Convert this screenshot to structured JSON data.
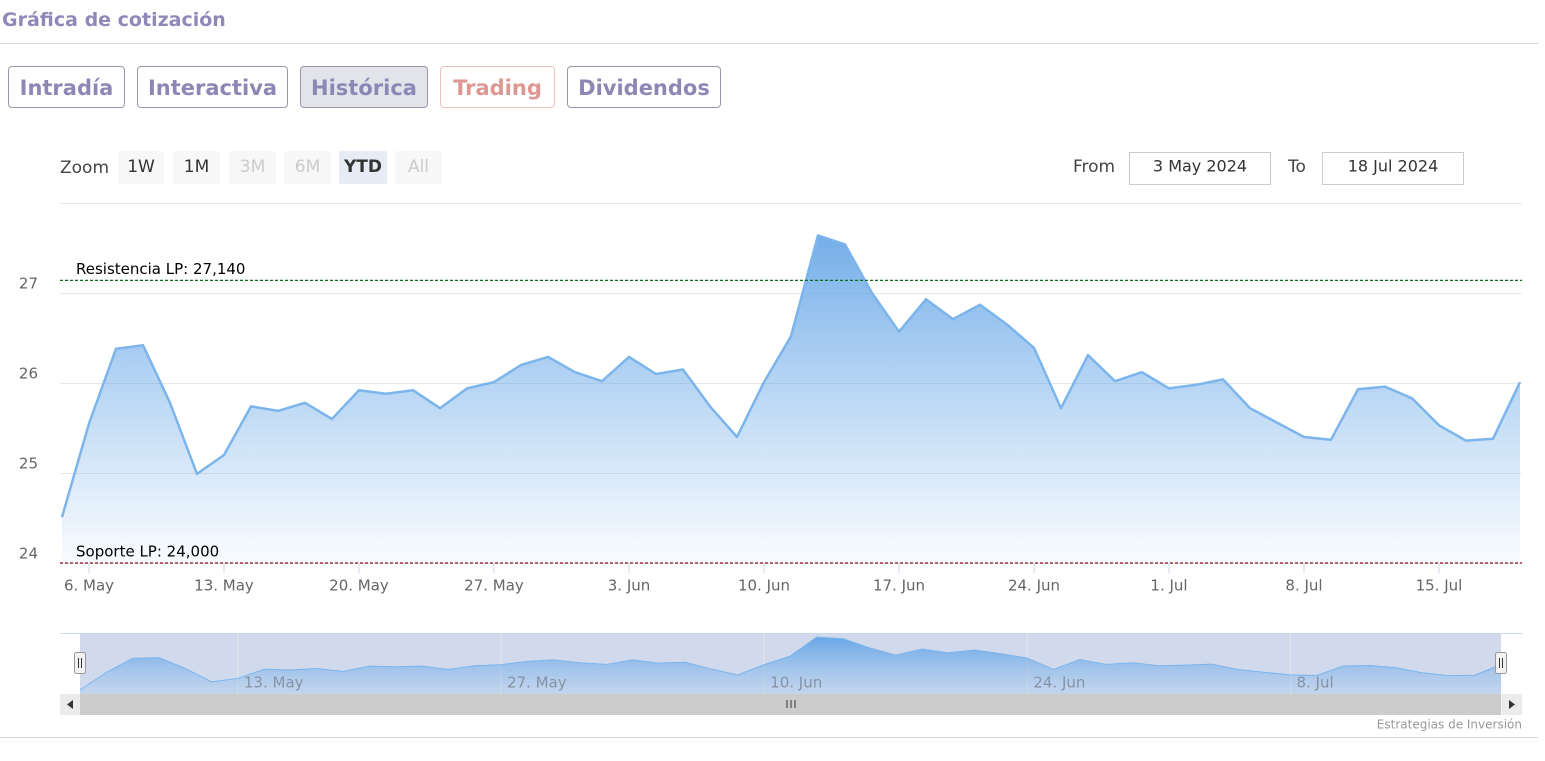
{
  "header": {
    "title": "Gráfica de cotización"
  },
  "tabs": [
    "Intradía",
    "Interactiva",
    "Histórica",
    "Trading",
    "Dividendos"
  ],
  "active_tab": 2,
  "zoom": {
    "label": "Zoom",
    "buttons": [
      {
        "label": "1W",
        "state": "enabled"
      },
      {
        "label": "1M",
        "state": "enabled"
      },
      {
        "label": "3M",
        "state": "disabled"
      },
      {
        "label": "6M",
        "state": "disabled"
      },
      {
        "label": "YTD",
        "state": "selected"
      },
      {
        "label": "All",
        "state": "disabled"
      }
    ]
  },
  "range": {
    "from_label": "From",
    "from": "3 May 2024",
    "to_label": "To",
    "to": "18 Jul 2024"
  },
  "chart_data": {
    "type": "area",
    "color": "#7cb5ec",
    "x": [
      "2024-05-03",
      "2024-05-06",
      "2024-05-07",
      "2024-05-08",
      "2024-05-09",
      "2024-05-10",
      "2024-05-13",
      "2024-05-14",
      "2024-05-15",
      "2024-05-16",
      "2024-05-17",
      "2024-05-20",
      "2024-05-21",
      "2024-05-22",
      "2024-05-23",
      "2024-05-24",
      "2024-05-27",
      "2024-05-28",
      "2024-05-29",
      "2024-05-30",
      "2024-05-31",
      "2024-06-03",
      "2024-06-04",
      "2024-06-05",
      "2024-06-06",
      "2024-06-07",
      "2024-06-10",
      "2024-06-11",
      "2024-06-12",
      "2024-06-13",
      "2024-06-14",
      "2024-06-17",
      "2024-06-18",
      "2024-06-19",
      "2024-06-20",
      "2024-06-21",
      "2024-06-24",
      "2024-06-25",
      "2024-06-26",
      "2024-06-27",
      "2024-06-28",
      "2024-07-01",
      "2024-07-02",
      "2024-07-03",
      "2024-07-04",
      "2024-07-05",
      "2024-07-08",
      "2024-07-09",
      "2024-07-10",
      "2024-07-11",
      "2024-07-12",
      "2024-07-15",
      "2024-07-16",
      "2024-07-17",
      "2024-07-18"
    ],
    "values": [
      24.51,
      25.55,
      26.38,
      26.42,
      25.78,
      24.99,
      25.2,
      25.74,
      25.69,
      25.78,
      25.6,
      25.92,
      25.88,
      25.92,
      25.72,
      25.94,
      26.01,
      26.2,
      26.29,
      26.12,
      26.02,
      26.29,
      26.1,
      26.15,
      25.74,
      25.4,
      26.01,
      26.52,
      27.64,
      27.54,
      27.0,
      26.57,
      26.93,
      26.71,
      26.87,
      26.65,
      26.39,
      25.72,
      26.31,
      26.02,
      26.12,
      25.94,
      25.98,
      26.04,
      25.72,
      25.56,
      25.4,
      25.37,
      25.93,
      25.96,
      25.83,
      25.53,
      25.36,
      25.38,
      26.01
    ],
    "ylim": [
      24,
      28
    ],
    "yticks": [
      24,
      25,
      26,
      27
    ],
    "grid": true,
    "xticks": [
      {
        "value": "2024-05-06",
        "label": "6. May"
      },
      {
        "value": "2024-05-13",
        "label": "13. May"
      },
      {
        "value": "2024-05-20",
        "label": "20. May"
      },
      {
        "value": "2024-05-27",
        "label": "27. May"
      },
      {
        "value": "2024-06-03",
        "label": "3. Jun"
      },
      {
        "value": "2024-06-10",
        "label": "10. Jun"
      },
      {
        "value": "2024-06-17",
        "label": "17. Jun"
      },
      {
        "value": "2024-06-24",
        "label": "24. Jun"
      },
      {
        "value": "2024-07-01",
        "label": "1. Jul"
      },
      {
        "value": "2024-07-08",
        "label": "8. Jul"
      },
      {
        "value": "2024-07-15",
        "label": "15. Jul"
      }
    ],
    "plot_lines": [
      {
        "value": 27.14,
        "label": "Resistencia LP: 27,140",
        "color": "#0a6b1a"
      },
      {
        "value": 24,
        "label": "Soporte LP: 24,000",
        "color": "#8b1020"
      }
    ],
    "navigator_ticks": [
      {
        "value": "2024-05-13",
        "label": "13. May"
      },
      {
        "value": "2024-05-27",
        "label": "27. May"
      },
      {
        "value": "2024-06-10",
        "label": "10. Jun"
      },
      {
        "value": "2024-06-24",
        "label": "24. Jun"
      },
      {
        "value": "2024-07-08",
        "label": "8. Jul"
      }
    ]
  },
  "credits": "Estrategias de Inversión"
}
